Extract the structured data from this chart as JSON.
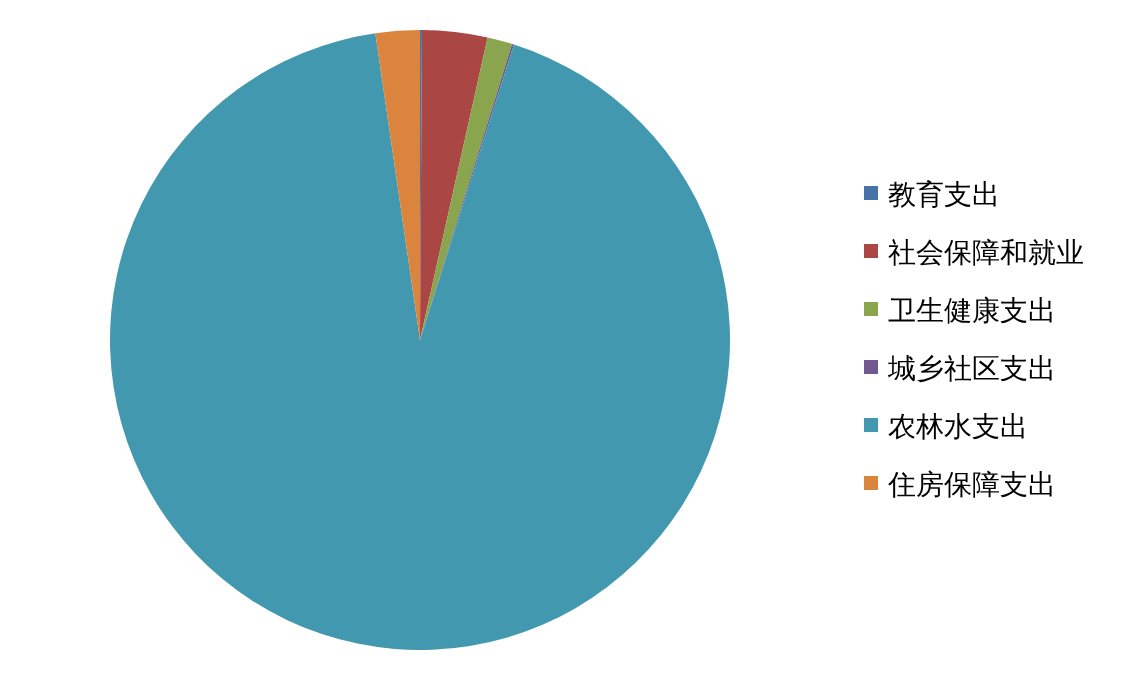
{
  "chart_data": {
    "type": "pie",
    "categories": [
      "教育支出",
      "社会保障和就业",
      "卫生健康支出",
      "城乡社区支出",
      "农林水支出",
      "住房保障支出"
    ],
    "values": [
      0.1,
      3.4,
      1.3,
      0.1,
      92.8,
      2.3
    ],
    "colors": [
      "#4572a7",
      "#aa4643",
      "#89a54e",
      "#71588f",
      "#4198af",
      "#db843d"
    ],
    "legend": "right"
  }
}
